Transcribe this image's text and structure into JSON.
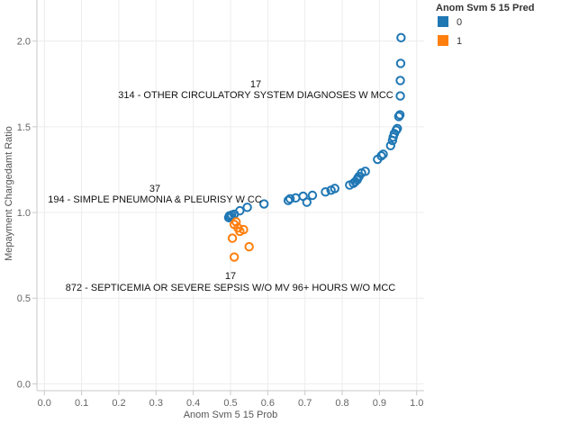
{
  "chart_data": {
    "type": "scatter",
    "xlabel": "Anom Svm 5 15 Prob",
    "ylabel": "Mepayment Chargedamt Ratio",
    "xlim": [
      -0.02,
      1.02
    ],
    "ylim": [
      -0.04,
      2.24
    ],
    "xticks": [
      0.0,
      0.1,
      0.2,
      0.3,
      0.4,
      0.5,
      0.6,
      0.7,
      0.8,
      0.9,
      1.0
    ],
    "xtick_labels": [
      "0.0",
      "0.1",
      "0.2",
      "0.3",
      "0.4",
      "0.5",
      "0.6",
      "0.7",
      "0.8",
      "0.9",
      "1.0"
    ],
    "yticks": [
      0.0,
      0.5,
      1.0,
      1.5,
      2.0
    ],
    "ytick_labels": [
      "0.0",
      "0.5",
      "1.0",
      "1.5",
      "2.0"
    ],
    "grid": true,
    "legend": {
      "title": "Anom Svm 5 15 Pred",
      "placement": "right",
      "entries": [
        {
          "label": "0",
          "color": "#1f77b4"
        },
        {
          "label": "1",
          "color": "#ff7f0e"
        }
      ]
    },
    "series": [
      {
        "color": "#1f77b4",
        "points": [
          [
            0.495,
            0.97
          ],
          [
            0.497,
            0.98
          ],
          [
            0.5,
            0.975
          ],
          [
            0.503,
            0.985
          ],
          [
            0.51,
            0.99
          ],
          [
            0.525,
            1.01
          ],
          [
            0.545,
            1.03
          ],
          [
            0.59,
            1.05
          ],
          [
            0.655,
            1.07
          ],
          [
            0.66,
            1.08
          ],
          [
            0.675,
            1.085
          ],
          [
            0.695,
            1.095
          ],
          [
            0.705,
            1.06
          ],
          [
            0.72,
            1.1
          ],
          [
            0.755,
            1.12
          ],
          [
            0.77,
            1.13
          ],
          [
            0.78,
            1.14
          ],
          [
            0.82,
            1.16
          ],
          [
            0.83,
            1.17
          ],
          [
            0.835,
            1.18
          ],
          [
            0.84,
            1.19
          ],
          [
            0.842,
            1.2
          ],
          [
            0.845,
            1.21
          ],
          [
            0.852,
            1.23
          ],
          [
            0.862,
            1.24
          ],
          [
            0.895,
            1.31
          ],
          [
            0.905,
            1.33
          ],
          [
            0.91,
            1.34
          ],
          [
            0.93,
            1.39
          ],
          [
            0.935,
            1.42
          ],
          [
            0.937,
            1.44
          ],
          [
            0.94,
            1.46
          ],
          [
            0.945,
            1.48
          ],
          [
            0.948,
            1.49
          ],
          [
            0.952,
            1.56
          ],
          [
            0.955,
            1.57
          ],
          [
            0.956,
            1.68
          ],
          [
            0.956,
            1.77
          ],
          [
            0.957,
            1.87
          ],
          [
            0.958,
            2.02
          ]
        ]
      },
      {
        "color": "#ff7f0e",
        "points": [
          [
            0.51,
            0.93
          ],
          [
            0.515,
            0.945
          ],
          [
            0.52,
            0.91
          ],
          [
            0.525,
            0.89
          ],
          [
            0.535,
            0.9
          ],
          [
            0.505,
            0.85
          ],
          [
            0.55,
            0.8
          ],
          [
            0.51,
            0.74
          ]
        ]
      }
    ],
    "annotations": [
      {
        "count": "17",
        "label": "314 - OTHER CIRCULATORY SYSTEM DIAGNOSES W MCC",
        "x": 0.958,
        "y": 2.02
      },
      {
        "count": "37",
        "label": "194 - SIMPLE PNEUMONIA & PLEURISY W CC",
        "x": 0.497,
        "y": 0.98
      },
      {
        "count": "17",
        "label": "872 - SEPTICEMIA OR SEVERE SEPSIS W/O MV 96+ HOURS W/O MCC",
        "x": 0.51,
        "y": 0.74
      }
    ]
  }
}
